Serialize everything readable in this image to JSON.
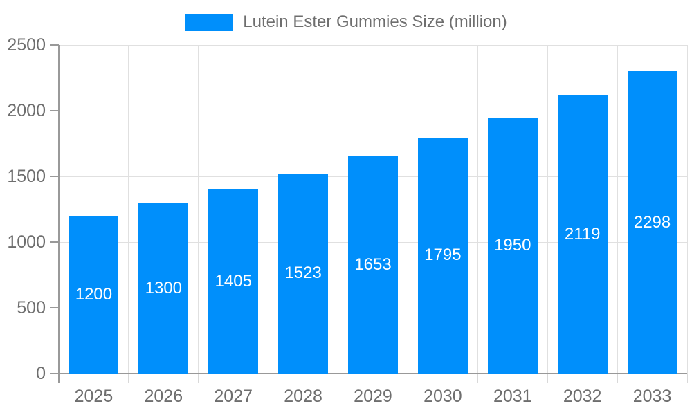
{
  "legend": {
    "label": "Lutein Ester Gummies Size (million)"
  },
  "colors": {
    "bar": "#008FFB",
    "grid": "#e0e0e0",
    "axis": "#999999",
    "minor_tick": "#d9d9d9",
    "tick_label": "#6e6e6e",
    "data_label": "#ffffff",
    "background": "#ffffff"
  },
  "chart_data": {
    "type": "bar",
    "title": "",
    "xlabel": "",
    "ylabel": "",
    "categories": [
      "2025",
      "2026",
      "2027",
      "2028",
      "2029",
      "2030",
      "2031",
      "2032",
      "2033"
    ],
    "values": [
      1200,
      1300,
      1405,
      1523,
      1653,
      1795,
      1950,
      2119,
      2298
    ],
    "series_name": "Lutein Ester Gummies Size (million)",
    "ylim": [
      0,
      2500
    ],
    "y_ticks": [
      0,
      500,
      1000,
      1500,
      2000,
      2500
    ],
    "grid": true,
    "legend_position": "top",
    "data_labels": "inside-center"
  }
}
